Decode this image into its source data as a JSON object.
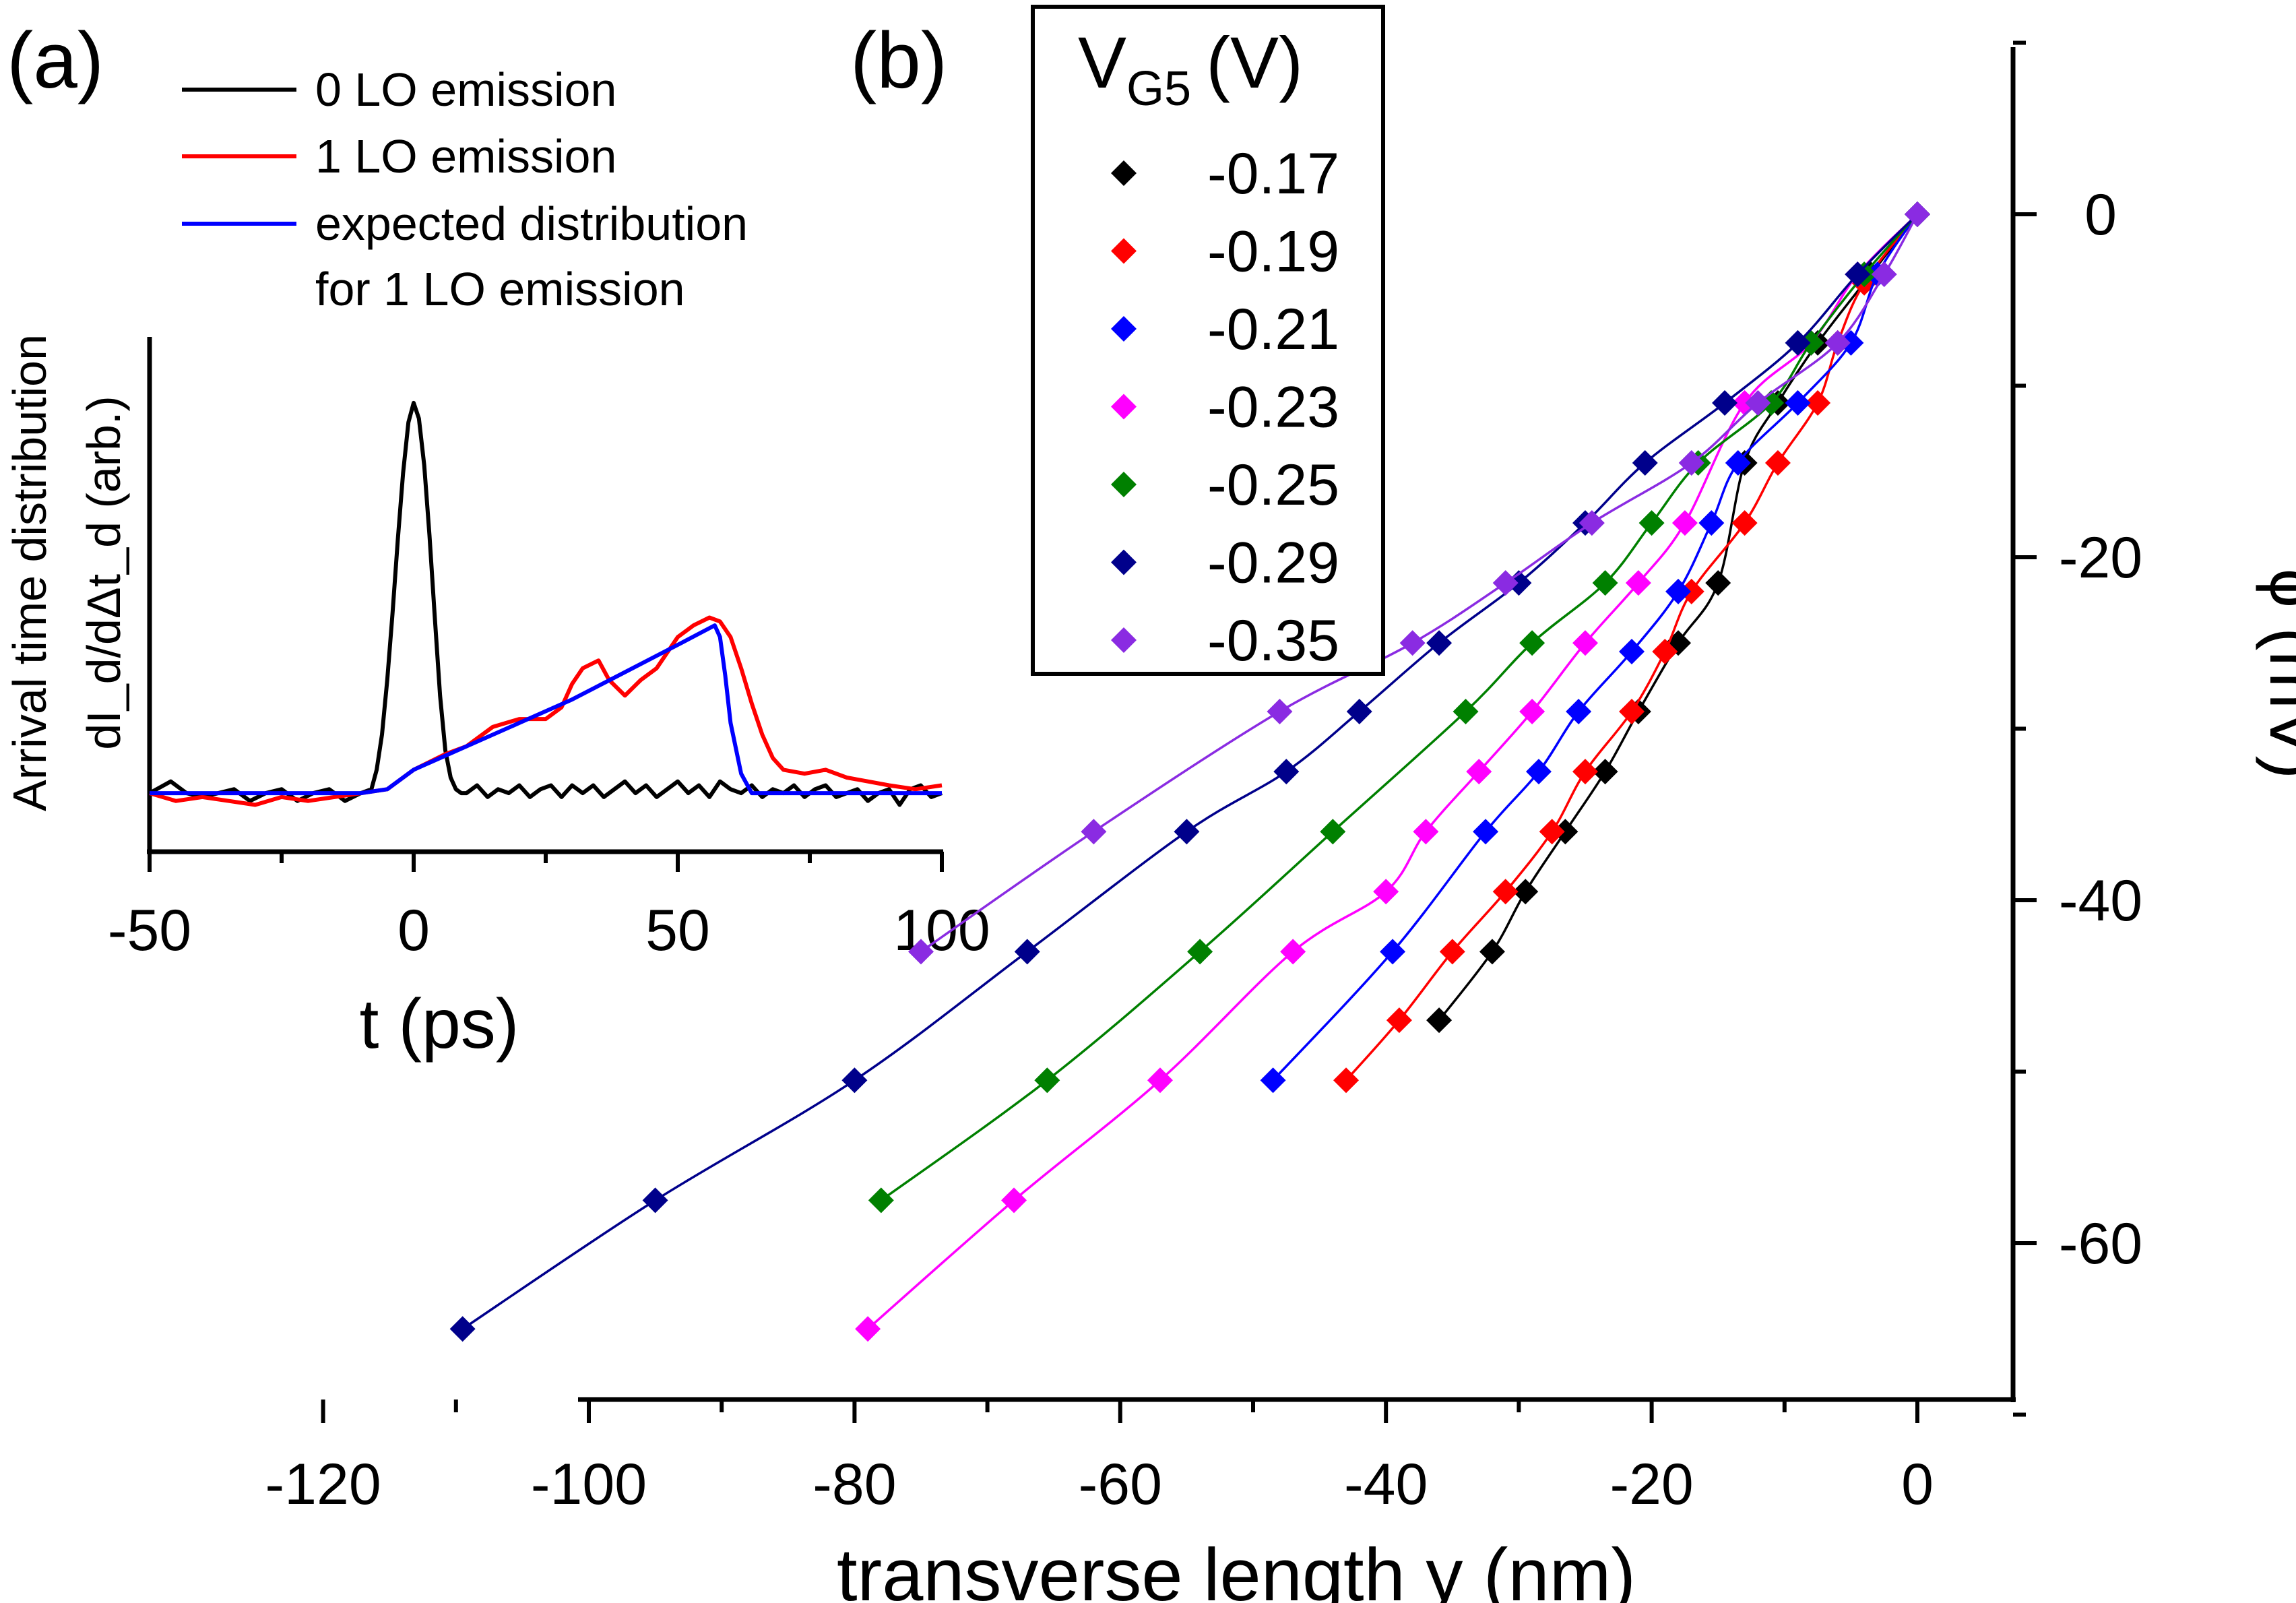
{
  "chart_data": [
    {
      "id": "a",
      "panel_label": "(a)",
      "type": "line",
      "xlabel": "t (ps)",
      "ylabel_line1": "Arrival time distribution",
      "ylabel_line2": "dI_d/dΔt_d (arb.)",
      "xlim": [
        -50,
        100
      ],
      "ylim": [
        -0.15,
        1.1
      ],
      "xticks": [
        -50,
        0,
        50,
        100
      ],
      "xtick_labels": [
        "-50",
        "0",
        "50",
        "100"
      ],
      "legend_position": "top-left",
      "legend_line4": "for 1 LO emission",
      "series": [
        {
          "name": "0 LO emission",
          "color": "#000000",
          "x": [
            -50,
            -46,
            -43,
            -40,
            -37,
            -34,
            -31,
            -28,
            -25,
            -22,
            -19,
            -16,
            -13,
            -10,
            -8,
            -7,
            -6,
            -5,
            -4,
            -3,
            -2,
            -1,
            0,
            1,
            2,
            3,
            4,
            5,
            6,
            7,
            8,
            9,
            10,
            12,
            14,
            16,
            18,
            20,
            22,
            24,
            26,
            28,
            30,
            32,
            34,
            36,
            38,
            40,
            42,
            44,
            46,
            48,
            50,
            52,
            54,
            56,
            58,
            60,
            62,
            64,
            66,
            68,
            70,
            72,
            74,
            76,
            78,
            80,
            82,
            84,
            86,
            88,
            90,
            92,
            94,
            96,
            98,
            100
          ],
          "y": [
            0.0,
            0.03,
            0.0,
            -0.01,
            0.0,
            0.01,
            -0.02,
            0.0,
            0.01,
            -0.02,
            0.0,
            0.01,
            -0.02,
            0.0,
            0.01,
            0.06,
            0.15,
            0.29,
            0.46,
            0.65,
            0.82,
            0.95,
            1.0,
            0.96,
            0.84,
            0.66,
            0.45,
            0.25,
            0.11,
            0.04,
            0.01,
            0.0,
            0.0,
            0.02,
            -0.01,
            0.01,
            0.0,
            0.02,
            -0.01,
            0.01,
            0.02,
            -0.01,
            0.02,
            0.0,
            0.02,
            -0.01,
            0.01,
            0.03,
            0.0,
            0.02,
            -0.01,
            0.01,
            0.03,
            0.0,
            0.02,
            -0.01,
            0.03,
            0.01,
            0.0,
            0.02,
            -0.01,
            0.01,
            0.0,
            0.02,
            -0.01,
            0.01,
            0.02,
            -0.01,
            0.0,
            0.01,
            -0.02,
            0.0,
            0.01,
            -0.03,
            0.01,
            0.02,
            -0.01,
            0.0
          ]
        },
        {
          "name": "1 LO emission",
          "color": "#ff0000",
          "x": [
            -50,
            -45,
            -40,
            -35,
            -30,
            -25,
            -20,
            -15,
            -10,
            -5,
            0,
            3,
            6,
            10,
            15,
            20,
            25,
            28,
            30,
            32,
            35,
            37,
            40,
            43,
            46,
            50,
            53,
            56,
            58,
            60,
            62,
            64,
            66,
            68,
            70,
            74,
            78,
            82,
            86,
            90,
            95,
            100
          ],
          "y": [
            0.0,
            -0.02,
            -0.01,
            -0.02,
            -0.03,
            -0.01,
            -0.02,
            -0.01,
            0.0,
            0.01,
            0.06,
            0.08,
            0.1,
            0.12,
            0.17,
            0.19,
            0.19,
            0.22,
            0.28,
            0.32,
            0.34,
            0.29,
            0.25,
            0.29,
            0.32,
            0.4,
            0.43,
            0.45,
            0.44,
            0.4,
            0.32,
            0.23,
            0.15,
            0.09,
            0.06,
            0.05,
            0.06,
            0.04,
            0.03,
            0.02,
            0.01,
            0.02
          ]
        },
        {
          "name": "expected distribution",
          "color": "#0000ff",
          "x": [
            -50,
            -40,
            -30,
            -20,
            -10,
            -5,
            0,
            10,
            20,
            30,
            40,
            50,
            57,
            58,
            59,
            60,
            62,
            64,
            70,
            80,
            90,
            100
          ],
          "y": [
            0.0,
            0.0,
            0.0,
            0.0,
            0.0,
            0.01,
            0.06,
            0.12,
            0.18,
            0.24,
            0.31,
            0.38,
            0.43,
            0.4,
            0.3,
            0.18,
            0.05,
            0.0,
            0.0,
            0.0,
            0.0,
            0.0
          ]
        }
      ]
    },
    {
      "id": "b",
      "panel_label": "(b)",
      "type": "scatter",
      "xlabel": "transverse length y (nm)",
      "ylabel": "ϕ (mV)",
      "xlim": [
        -122,
        7
      ],
      "ylim": [
        -69,
        9
      ],
      "xticks": [
        -120,
        -100,
        -80,
        -60,
        -40,
        -20,
        0
      ],
      "xtick_labels": [
        "-120",
        "-100",
        "-80",
        "-60",
        "-40",
        "-20",
        "0"
      ],
      "yticks": [
        0,
        -20,
        -40,
        -60
      ],
      "ytick_labels": [
        "0",
        "-20",
        "-40",
        "-60"
      ],
      "legend_title_main": "V",
      "legend_title_sub": "G5",
      "legend_title_unit": "(V)",
      "legend_position": "top-left",
      "series": [
        {
          "name": "-0.17",
          "color": "#000000",
          "x": [
            0,
            -3.5,
            -7.5,
            -10.5,
            -13,
            -15,
            -18,
            -21,
            -23.5,
            -26.5,
            -29.5,
            -32,
            -36
          ],
          "y": [
            0,
            -3.5,
            -7.5,
            -11,
            -14.5,
            -21.5,
            -25,
            -29,
            -32.5,
            -36,
            -39.5,
            -43,
            -47
          ]
        },
        {
          "name": "-0.19",
          "color": "#ff0000",
          "x": [
            0,
            -4,
            -6,
            -7.5,
            -10.5,
            -13,
            -17,
            -19,
            -21.5,
            -25,
            -27.5,
            -31,
            -35,
            -39,
            -43
          ],
          "y": [
            0,
            -4,
            -7.5,
            -11,
            -14.5,
            -18,
            -22,
            -25.5,
            -29,
            -32.5,
            -36,
            -39.5,
            -43,
            -47,
            -50.5
          ]
        },
        {
          "name": "-0.21",
          "color": "#0000ff",
          "x": [
            0,
            -3,
            -5,
            -9,
            -13.5,
            -15.5,
            -18,
            -21.5,
            -25.5,
            -28.5,
            -32.5,
            -39.5,
            -48.5
          ],
          "y": [
            0,
            -3.5,
            -7.5,
            -11,
            -14.5,
            -18,
            -22,
            -25.5,
            -29,
            -32.5,
            -36,
            -43,
            -50.5
          ]
        },
        {
          "name": "-0.23",
          "color": "#ff00ff",
          "x": [
            0,
            -4.5,
            -8,
            -13,
            -17.5,
            -21,
            -25,
            -29,
            -33,
            -37,
            -40,
            -47,
            -57,
            -68,
            -79
          ],
          "y": [
            0,
            -3.5,
            -7.5,
            -11,
            -18,
            -21.5,
            -25,
            -29,
            -32.5,
            -36,
            -39.5,
            -43,
            -50.5,
            -57.5,
            -65
          ]
        },
        {
          "name": "-0.25",
          "color": "#008000",
          "x": [
            0,
            -4,
            -8,
            -11,
            -16.5,
            -20,
            -23.5,
            -29,
            -34,
            -44,
            -54,
            -65.5,
            -78
          ],
          "y": [
            0,
            -3.5,
            -7.5,
            -11,
            -14.5,
            -18,
            -21.5,
            -25,
            -29,
            -36,
            -43,
            -50.5,
            -57.5
          ]
        },
        {
          "name": "-0.29",
          "color": "#00008b",
          "x": [
            0,
            -4.5,
            -9,
            -14.5,
            -20.5,
            -25,
            -30,
            -36,
            -42,
            -47.5,
            -55,
            -67,
            -80,
            -95,
            -109.5
          ],
          "y": [
            0,
            -3.5,
            -7.5,
            -11,
            -14.5,
            -18,
            -21.5,
            -25,
            -29,
            -32.5,
            -36,
            -43,
            -50.5,
            -57.5,
            -65
          ]
        },
        {
          "name": "-0.35",
          "color": "#8a2be2",
          "x": [
            0,
            -2.5,
            -6,
            -12,
            -17,
            -24.5,
            -31,
            -38,
            -48,
            -62,
            -75
          ],
          "y": [
            0,
            -3.5,
            -7.5,
            -11,
            -14.5,
            -18,
            -21.5,
            -25,
            -29,
            -36,
            -43
          ]
        }
      ]
    }
  ]
}
